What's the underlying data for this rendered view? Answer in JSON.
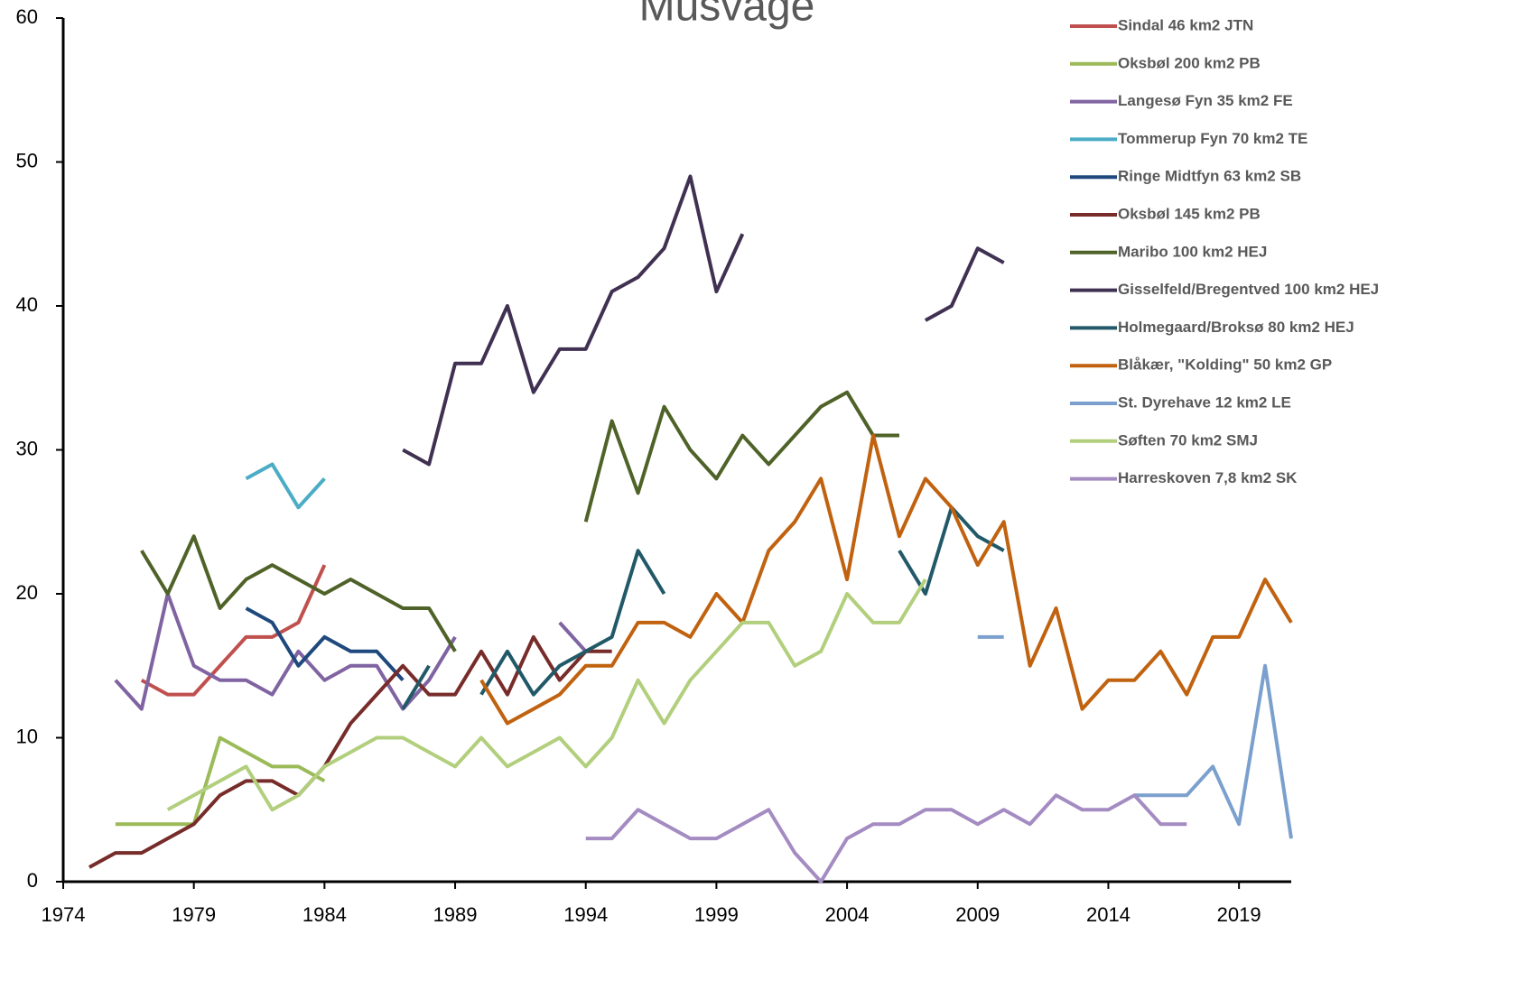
{
  "chart_data": {
    "type": "line",
    "title": "Musvåge",
    "xlim": [
      1974,
      2021
    ],
    "xticks": [
      1974,
      1979,
      1984,
      1989,
      1994,
      1999,
      2004,
      2009,
      2014,
      2019
    ],
    "ylim": [
      0,
      60
    ],
    "yticks": [
      0,
      10,
      20,
      30,
      40,
      50,
      60
    ],
    "series": [
      {
        "name": "Sindal 46 km2 JTN",
        "color": "#c0504d",
        "x": [
          1977,
          1978,
          1979,
          1980,
          1981,
          1982,
          1983,
          1984
        ],
        "values": [
          14,
          13,
          13,
          15,
          17,
          17,
          18,
          22
        ]
      },
      {
        "name": "Oksbøl 200 km2 PB",
        "color": "#9bbb59",
        "x": [
          1976,
          1977,
          1978,
          1979,
          1980,
          1981,
          1982,
          1983,
          1984
        ],
        "values": [
          4,
          4,
          4,
          4,
          10,
          9,
          8,
          8,
          7
        ]
      },
      {
        "name": "Langesø Fyn 35 km2 FE",
        "color": "#8064a2",
        "x": [
          1976,
          1977,
          1978,
          1979,
          1980,
          1981,
          1982,
          1983,
          1984,
          1985,
          1986,
          1987,
          1988,
          1989,
          1990,
          1991,
          1992,
          1993,
          1994
        ],
        "values": [
          14,
          12,
          20,
          15,
          14,
          14,
          13,
          16,
          14,
          15,
          15,
          12,
          14,
          17,
          null,
          null,
          null,
          18,
          16
        ]
      },
      {
        "name": "Tommerup Fyn 70 km2 TE",
        "color": "#4bacc6",
        "x": [
          1981,
          1982,
          1983,
          1984
        ],
        "values": [
          28,
          29,
          26,
          28
        ]
      },
      {
        "name": "Ringe Midtfyn 63 km2 SB",
        "color": "#1f497d",
        "x": [
          1981,
          1982,
          1983,
          1984,
          1985,
          1986,
          1987
        ],
        "values": [
          19,
          18,
          15,
          17,
          16,
          16,
          14
        ]
      },
      {
        "name": "Oksbøl 145 km2 PB",
        "color": "#772c2a",
        "x": [
          1975,
          1976,
          1977,
          1978,
          1979,
          1980,
          1981,
          1982,
          1983,
          1984,
          1985,
          1986,
          1987,
          1988,
          1989,
          1990,
          1991,
          1992,
          1993,
          1994,
          1995
        ],
        "values": [
          1,
          2,
          2,
          3,
          4,
          6,
          7,
          7,
          6,
          8,
          11,
          13,
          15,
          13,
          13,
          16,
          13,
          17,
          14,
          16,
          16
        ]
      },
      {
        "name": "Maribo 100 km2 HEJ",
        "color": "#4f6228",
        "x": [
          1977,
          1978,
          1979,
          1980,
          1981,
          1982,
          1983,
          1984,
          1985,
          1986,
          1987,
          1988,
          1989,
          1990,
          1991,
          1992,
          1993,
          1994,
          1995,
          1996,
          1997,
          1998,
          1999,
          2000,
          2001,
          2002,
          2003,
          2004,
          2005,
          2006
        ],
        "values": [
          23,
          20,
          24,
          19,
          21,
          22,
          21,
          20,
          21,
          20,
          19,
          19,
          16,
          null,
          null,
          null,
          null,
          25,
          32,
          27,
          33,
          30,
          28,
          31,
          29,
          31,
          33,
          34,
          31,
          31
        ]
      },
      {
        "name": "Gisselfeld/Bregentved 100 km2 HEJ",
        "color": "#403152",
        "x": [
          1987,
          1988,
          1989,
          1990,
          1991,
          1992,
          1993,
          1994,
          1995,
          1996,
          1997,
          1998,
          1999,
          2000,
          2001,
          2002,
          2003,
          2004,
          2005,
          2006,
          2007,
          2008,
          2009,
          2010
        ],
        "values": [
          30,
          29,
          36,
          36,
          40,
          34,
          37,
          37,
          41,
          42,
          44,
          49,
          41,
          45,
          null,
          null,
          null,
          null,
          null,
          null,
          39,
          40,
          44,
          43
        ]
      },
      {
        "name": "Holmegaard/Broksø 80 km2 HEJ",
        "color": "#215968",
        "x": [
          1987,
          1988,
          1989,
          1990,
          1991,
          1992,
          1993,
          1994,
          1995,
          1996,
          1997,
          1998,
          1999,
          2000,
          2001,
          2002,
          2003,
          2004,
          2005,
          2006,
          2007,
          2008,
          2009,
          2010
        ],
        "values": [
          12,
          15,
          null,
          13,
          16,
          13,
          15,
          16,
          17,
          23,
          20,
          null,
          null,
          null,
          null,
          null,
          null,
          null,
          null,
          23,
          20,
          26,
          24,
          23
        ]
      },
      {
        "name": "Blåkær, \"Kolding\" 50 km2 GP",
        "color": "#c0620f",
        "x": [
          1990,
          1991,
          1992,
          1993,
          1994,
          1995,
          1996,
          1997,
          1998,
          1999,
          2000,
          2001,
          2002,
          2003,
          2004,
          2005,
          2006,
          2007,
          2008,
          2009,
          2010,
          2011,
          2012,
          2013,
          2014,
          2015,
          2016,
          2017,
          2018,
          2019,
          2020,
          2021
        ],
        "values": [
          14,
          11,
          12,
          13,
          15,
          15,
          18,
          18,
          17,
          20,
          18,
          23,
          25,
          28,
          21,
          31,
          24,
          28,
          26,
          22,
          25,
          15,
          19,
          12,
          14,
          14,
          16,
          13,
          17,
          17,
          21,
          18
        ]
      },
      {
        "name": "St. Dyrehave 12 km2 LE",
        "color": "#7ba0cd",
        "x": [
          2009,
          2010,
          2011,
          2012,
          2013,
          2014,
          2015,
          2016,
          2017,
          2018,
          2019,
          2020,
          2021
        ],
        "values": [
          17,
          17,
          null,
          null,
          null,
          null,
          6,
          6,
          6,
          8,
          4,
          15,
          3
        ]
      },
      {
        "name": "Søften 70 km2 SMJ",
        "color": "#b2cf7d",
        "x": [
          1978,
          1979,
          1980,
          1981,
          1982,
          1983,
          1984,
          1985,
          1986,
          1987,
          1988,
          1989,
          1990,
          1991,
          1992,
          1993,
          1994,
          1995,
          1996,
          1997,
          1998,
          1999,
          2000,
          2001,
          2002,
          2003,
          2004,
          2005,
          2006,
          2007
        ],
        "values": [
          5,
          6,
          7,
          8,
          5,
          6,
          8,
          9,
          10,
          10,
          9,
          8,
          10,
          8,
          9,
          10,
          8,
          10,
          14,
          11,
          14,
          16,
          18,
          18,
          15,
          16,
          20,
          18,
          18,
          21
        ]
      },
      {
        "name": "Harreskoven 7,8 km2 SK",
        "color": "#a48bc2",
        "x": [
          1994,
          1995,
          1996,
          1997,
          1998,
          1999,
          2000,
          2001,
          2002,
          2003,
          2004,
          2005,
          2006,
          2007,
          2008,
          2009,
          2010,
          2011,
          2012,
          2013,
          2014,
          2015,
          2016,
          2017
        ],
        "values": [
          3,
          3,
          5,
          4,
          3,
          3,
          4,
          5,
          2,
          0,
          3,
          4,
          4,
          5,
          5,
          4,
          5,
          4,
          6,
          5,
          5,
          6,
          4,
          4
        ]
      }
    ]
  }
}
